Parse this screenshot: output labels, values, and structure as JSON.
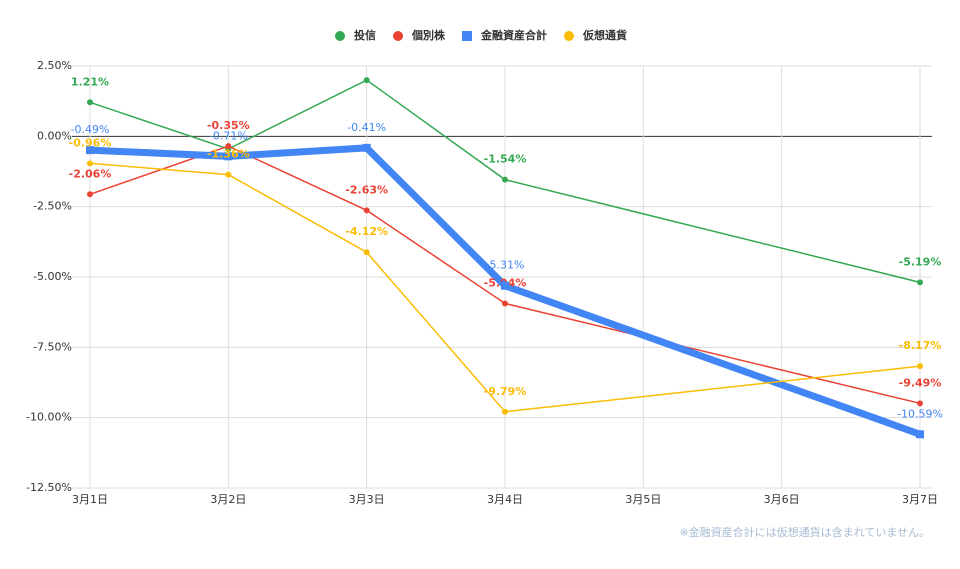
{
  "chart_data": {
    "type": "line",
    "categories": [
      "3月1日",
      "3月2日",
      "3月3日",
      "3月4日",
      "3月5日",
      "3月6日",
      "3月7日"
    ],
    "series": [
      {
        "name": "投信",
        "color": "#34a853",
        "line_width": 1.5,
        "values": [
          1.21,
          -0.45,
          2.0,
          -1.54,
          null,
          null,
          -5.19
        ],
        "value_labels": [
          "1.21%",
          null,
          null,
          "-1.54%",
          null,
          null,
          "-5.19%"
        ]
      },
      {
        "name": "個別株",
        "color": "#ea4335",
        "line_width": 1.5,
        "values": [
          -2.06,
          -0.35,
          -2.63,
          -5.94,
          null,
          null,
          -9.49
        ],
        "value_labels": [
          "-2.06%",
          "-0.35%",
          "-2.63%",
          "-5.94%",
          null,
          null,
          "-9.49%"
        ]
      },
      {
        "name": "金融資産合計",
        "color": "#4285f4",
        "line_width": 7,
        "values": [
          -0.49,
          -0.71,
          -0.41,
          -5.31,
          null,
          null,
          -10.59
        ],
        "value_labels": [
          "-0.49%",
          "-0.71%",
          "-0.41%",
          "-5.31%",
          null,
          null,
          "-10.59%"
        ]
      },
      {
        "name": "仮想通貨",
        "color": "#fbbc04",
        "line_width": 1.5,
        "values": [
          -0.96,
          -1.36,
          -4.12,
          -9.79,
          null,
          null,
          -8.17
        ],
        "value_labels": [
          "-0.96%",
          "-1.36%",
          "-4.12%",
          "-9.79%",
          null,
          null,
          "-8.17%"
        ]
      }
    ],
    "span_gaps": true,
    "ylim": [
      -12.5,
      2.5
    ],
    "yticks": [
      {
        "value": 2.5,
        "label": "2.50%"
      },
      {
        "value": 0,
        "label": "0.00%"
      },
      {
        "value": -2.5,
        "label": "-2.50%"
      },
      {
        "value": -5,
        "label": "-5.00%"
      },
      {
        "value": -7.5,
        "label": "-7.50%"
      },
      {
        "value": -10,
        "label": "-10.00%"
      },
      {
        "value": -12.5,
        "label": "-12.50%"
      }
    ],
    "grid": true,
    "legend": "top",
    "footnote": "※金融資産合計には仮想通貨は含まれていません。"
  }
}
